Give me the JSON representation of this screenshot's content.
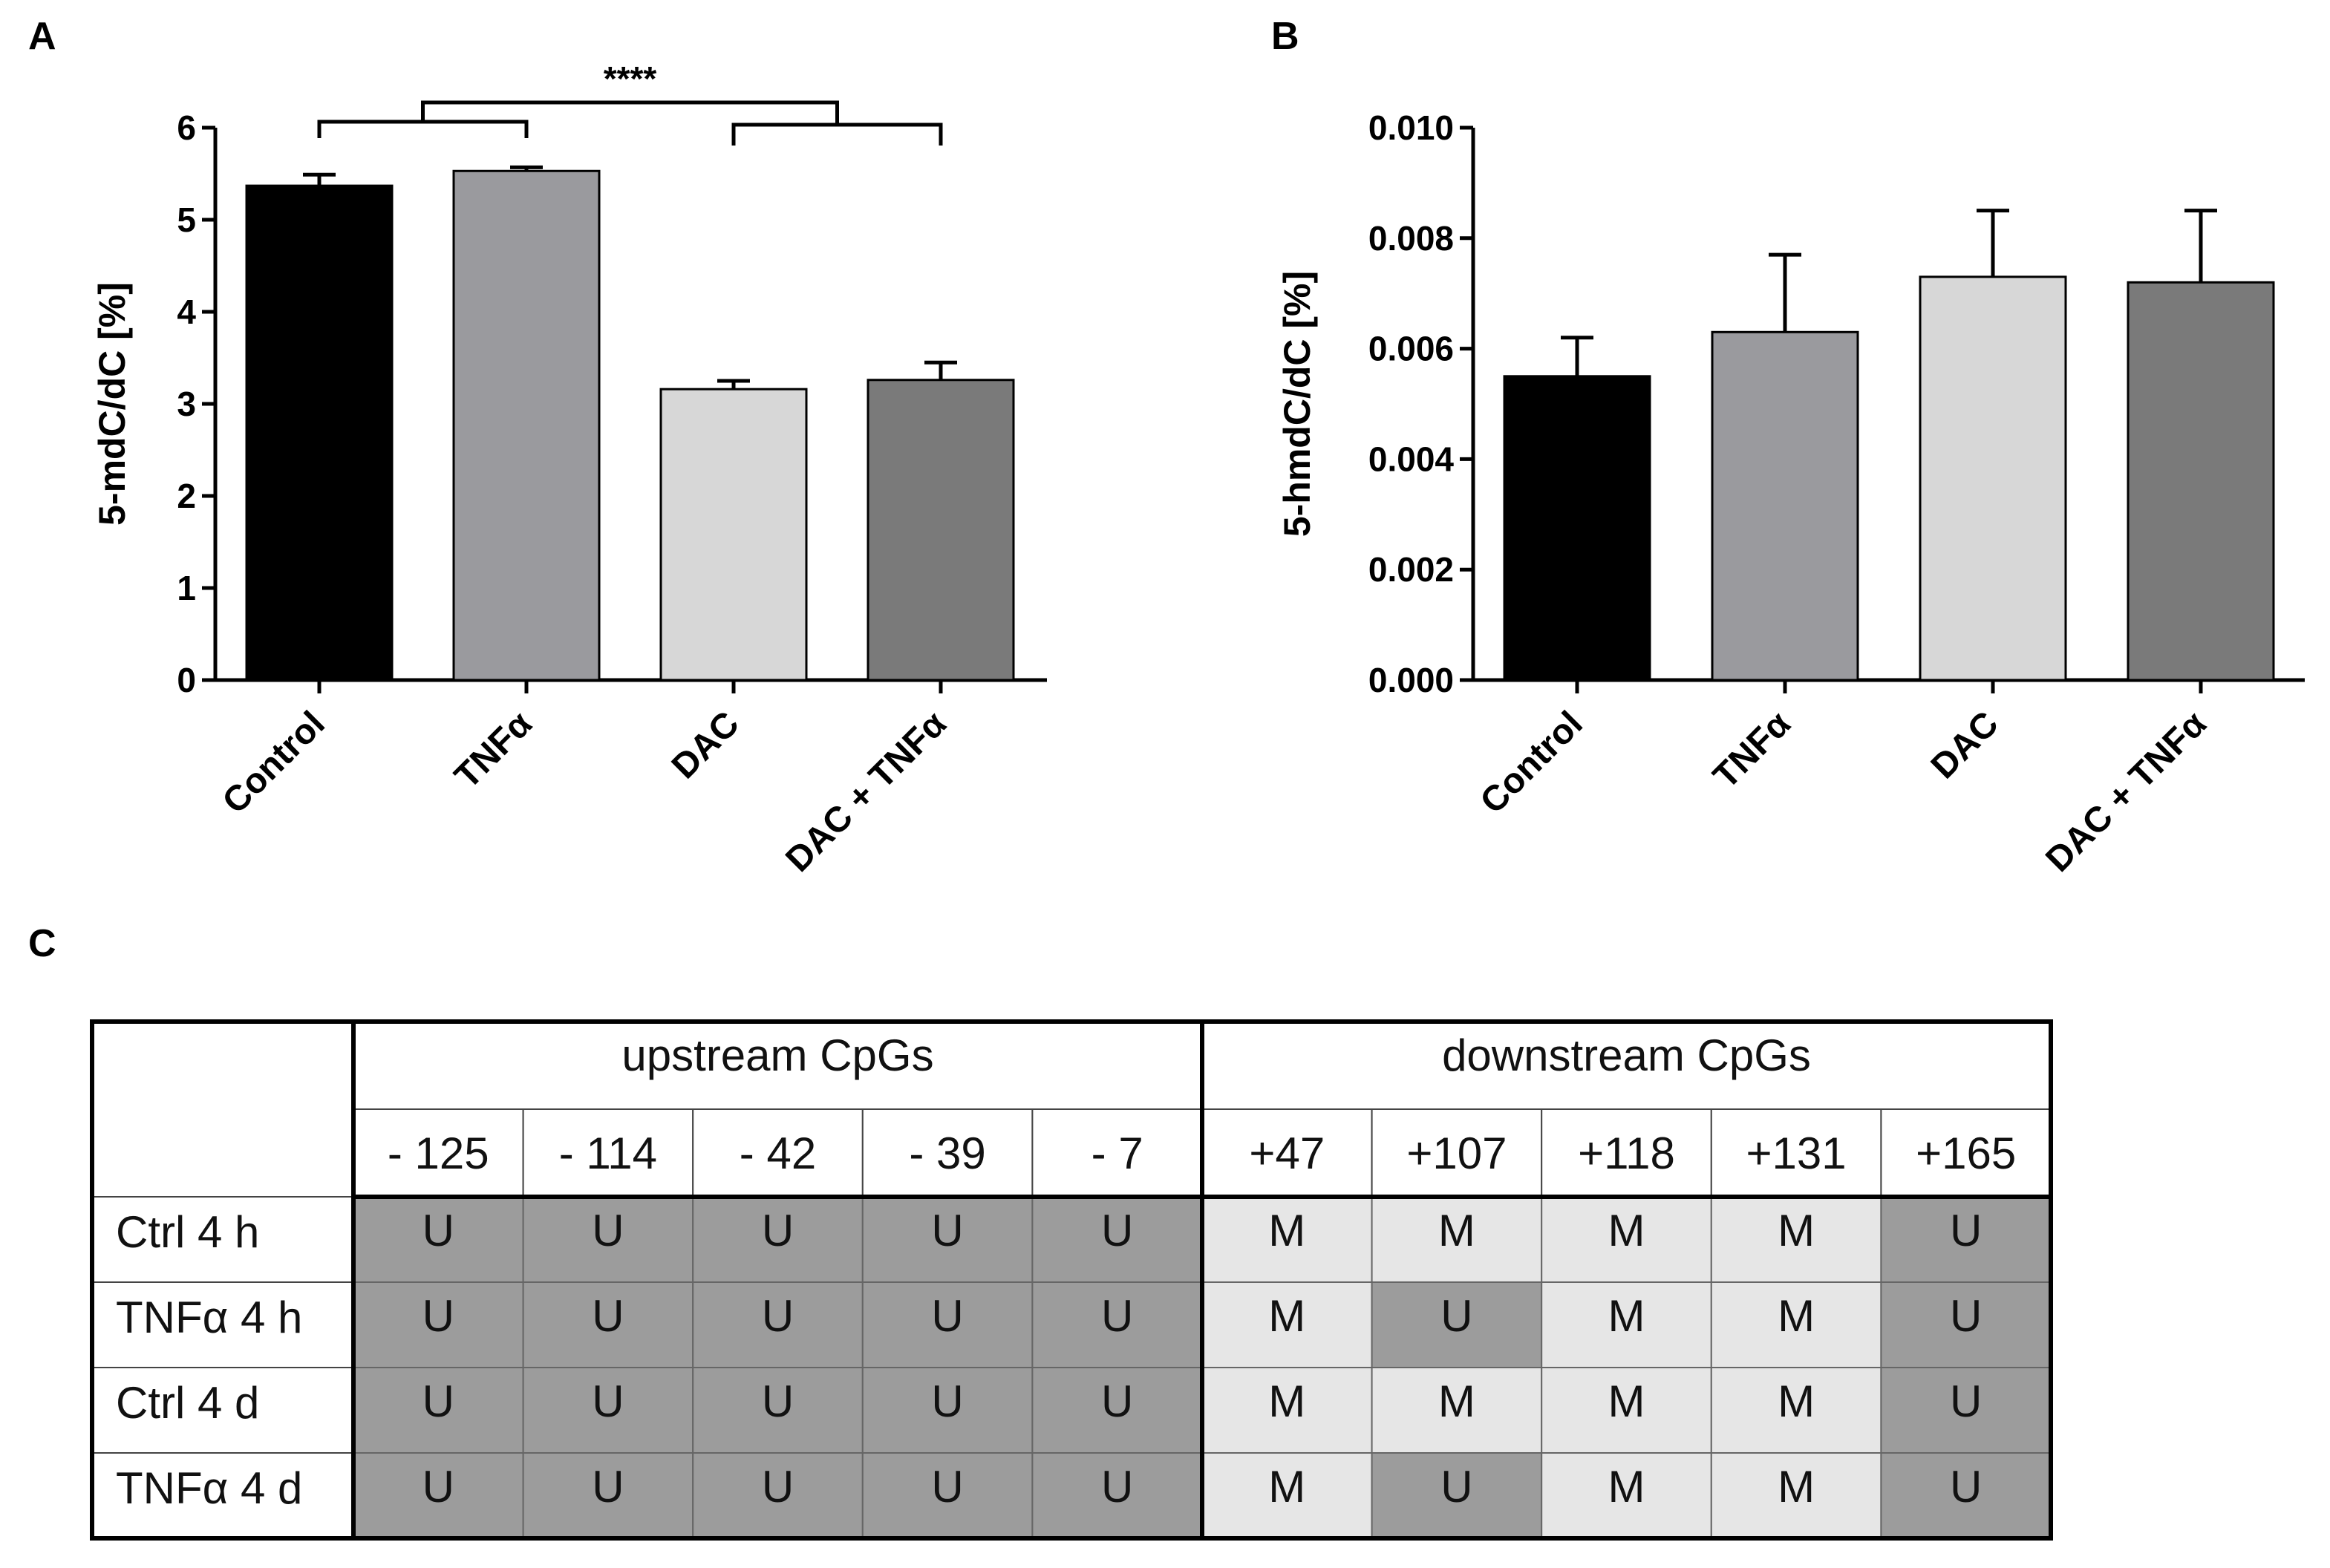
{
  "panel_labels": {
    "a": "A",
    "b": "B",
    "c": "C"
  },
  "colors": {
    "bar_fills": [
      "#000000",
      "#9a9a9e",
      "#d7d7d7",
      "#7a7a7a"
    ],
    "unmethylated": "#9c9c9c",
    "methylated": "#e6e6e6"
  },
  "chart_data": [
    {
      "type": "bar",
      "panel": "A",
      "categories": [
        "Control",
        "TNFα",
        "DAC",
        "DAC + TNFα"
      ],
      "values": [
        5.37,
        5.53,
        3.16,
        3.26
      ],
      "errors": [
        0.12,
        0.04,
        0.09,
        0.19
      ],
      "ylabel": "5-mdC/dC [%]",
      "xlabel": "",
      "ylim": [
        0,
        6
      ],
      "yticks": [
        "0",
        "1",
        "2",
        "3",
        "4",
        "5",
        "6"
      ],
      "significance": "****",
      "significance_note": "Control vs TNFα group compared with DAC vs DAC + TNFα group"
    },
    {
      "type": "bar",
      "panel": "B",
      "categories": [
        "Control",
        "TNFα",
        "DAC",
        "DAC + TNFα"
      ],
      "values": [
        0.0055,
        0.0063,
        0.0073,
        0.0072
      ],
      "errors": [
        0.0007,
        0.0014,
        0.0012,
        0.0013
      ],
      "ylabel": "5-hmdC/dC [%]",
      "xlabel": "",
      "ylim": [
        0,
        0.01
      ],
      "yticks": [
        "0.000",
        "0.002",
        "0.004",
        "0.006",
        "0.008",
        "0.010"
      ]
    },
    {
      "type": "table",
      "panel": "C",
      "groups": [
        "upstream CpGs",
        "downstream CpGs"
      ],
      "columns": [
        "- 125",
        "- 114",
        "- 42",
        "- 39",
        "- 7",
        "+47",
        "+107",
        "+118",
        "+131",
        "+165"
      ],
      "rows": [
        {
          "label": "Ctrl 4 h",
          "cells": [
            "U",
            "U",
            "U",
            "U",
            "U",
            "M",
            "M",
            "M",
            "M",
            "U"
          ]
        },
        {
          "label": "TNFα 4 h",
          "cells": [
            "U",
            "U",
            "U",
            "U",
            "U",
            "M",
            "U",
            "M",
            "M",
            "U"
          ]
        },
        {
          "label": "Ctrl 4 d",
          "cells": [
            "U",
            "U",
            "U",
            "U",
            "U",
            "M",
            "M",
            "M",
            "M",
            "U"
          ]
        },
        {
          "label": "TNFα 4 d",
          "cells": [
            "U",
            "U",
            "U",
            "U",
            "U",
            "M",
            "U",
            "M",
            "M",
            "U"
          ]
        }
      ]
    }
  ]
}
